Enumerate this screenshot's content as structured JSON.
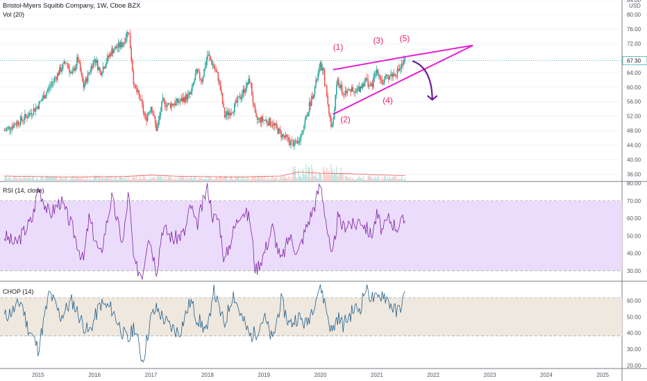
{
  "header": {
    "title": "Bristol-Myers Squibb Company, 1W, Cboe BZX",
    "volume_label": "Vol (20)",
    "rsi_label": "RSI (14, close)",
    "chop_label": "CHOP (14)",
    "currency": "USD"
  },
  "colors": {
    "up": "#26a69a",
    "down": "#ef5350",
    "pattern": "#e61fd1",
    "wave_labels": "#e91e63",
    "arrow": "#6a1b9a",
    "rsi_line": "#7b1fa2",
    "rsi_band": "#ecdcfb",
    "chop_line": "#1f5f8b",
    "chop_band": "#efe8df",
    "vol_ma": "#ef5350",
    "price_line": "#26a69a"
  },
  "chart_data": [
    {
      "type": "candlestick",
      "name": "price",
      "x": [
        "2015",
        "2016",
        "2017",
        "2018",
        "2019",
        "2020",
        "2021",
        "2022",
        "2023",
        "2024",
        "2025"
      ],
      "ylim": [
        34,
        84
      ],
      "yticks": [
        36.0,
        40.0,
        44.0,
        48.0,
        52.0,
        56.0,
        60.0,
        64.0,
        68.0,
        72.0,
        76.0,
        80.0,
        84.0
      ],
      "last_price": 67.3,
      "series": [
        {
          "points": [
            [
              2014.4,
              48
            ],
            [
              2014.6,
              50
            ],
            [
              2014.8,
              52
            ],
            [
              2015.0,
              55
            ],
            [
              2015.2,
              60
            ],
            [
              2015.4,
              65
            ],
            [
              2015.5,
              67
            ],
            [
              2015.6,
              63
            ],
            [
              2015.7,
              68
            ],
            [
              2015.8,
              60
            ],
            [
              2016.0,
              68
            ],
            [
              2016.1,
              64
            ],
            [
              2016.3,
              70
            ],
            [
              2016.5,
              72
            ],
            [
              2016.6,
              76
            ],
            [
              2016.7,
              60
            ],
            [
              2016.8,
              57
            ],
            [
              2016.9,
              51
            ],
            [
              2017.0,
              55
            ],
            [
              2017.1,
              48
            ],
            [
              2017.2,
              56
            ],
            [
              2017.3,
              55
            ],
            [
              2017.5,
              56
            ],
            [
              2017.7,
              58
            ],
            [
              2017.8,
              64
            ],
            [
              2017.9,
              62
            ],
            [
              2018.0,
              69
            ],
            [
              2018.1,
              66
            ],
            [
              2018.2,
              62
            ],
            [
              2018.3,
              52
            ],
            [
              2018.45,
              54
            ],
            [
              2018.6,
              58
            ],
            [
              2018.75,
              62
            ],
            [
              2018.85,
              51
            ],
            [
              2019.0,
              51
            ],
            [
              2019.15,
              50
            ],
            [
              2019.3,
              47
            ],
            [
              2019.45,
              45
            ],
            [
              2019.6,
              44
            ],
            [
              2019.75,
              52
            ],
            [
              2019.9,
              60
            ],
            [
              2020.0,
              66
            ],
            [
              2020.05,
              64
            ],
            [
              2020.2,
              48
            ],
            [
              2020.3,
              62
            ],
            [
              2020.4,
              58
            ],
            [
              2020.5,
              60
            ],
            [
              2020.6,
              58
            ],
            [
              2020.7,
              60
            ],
            [
              2020.8,
              62
            ],
            [
              2020.9,
              60
            ],
            [
              2021.0,
              65
            ],
            [
              2021.1,
              61
            ],
            [
              2021.2,
              63
            ],
            [
              2021.35,
              64
            ],
            [
              2021.5,
              67.3
            ]
          ]
        }
      ]
    },
    {
      "type": "bar",
      "name": "volume",
      "ma_points": [
        [
          2014.4,
          2.0
        ],
        [
          2015.5,
          1.6
        ],
        [
          2016.5,
          1.8
        ],
        [
          2017.0,
          2.3
        ],
        [
          2017.5,
          1.9
        ],
        [
          2018.5,
          1.6
        ],
        [
          2019.3,
          2.0
        ],
        [
          2019.6,
          3.4
        ],
        [
          2020.0,
          3.0
        ],
        [
          2020.5,
          2.8
        ],
        [
          2021.0,
          2.4
        ],
        [
          2021.5,
          2.1
        ]
      ]
    },
    {
      "type": "line",
      "name": "rsi",
      "ylim": [
        24,
        81
      ],
      "yticks": [
        30.0,
        40.0,
        50.0,
        60.0,
        70.0,
        80.0
      ],
      "bands": [
        30,
        70
      ],
      "points": [
        [
          2014.4,
          50
        ],
        [
          2014.6,
          45
        ],
        [
          2014.8,
          55
        ],
        [
          2014.9,
          60
        ],
        [
          2015.0,
          78
        ],
        [
          2015.2,
          62
        ],
        [
          2015.4,
          70
        ],
        [
          2015.6,
          55
        ],
        [
          2015.8,
          35
        ],
        [
          2015.9,
          60
        ],
        [
          2016.1,
          38
        ],
        [
          2016.3,
          72
        ],
        [
          2016.5,
          45
        ],
        [
          2016.6,
          75
        ],
        [
          2016.7,
          33
        ],
        [
          2016.85,
          28
        ],
        [
          2016.95,
          52
        ],
        [
          2017.1,
          30
        ],
        [
          2017.2,
          55
        ],
        [
          2017.4,
          48
        ],
        [
          2017.6,
          52
        ],
        [
          2017.7,
          68
        ],
        [
          2017.8,
          55
        ],
        [
          2018.0,
          78
        ],
        [
          2018.1,
          60
        ],
        [
          2018.2,
          60
        ],
        [
          2018.3,
          35
        ],
        [
          2018.45,
          52
        ],
        [
          2018.6,
          65
        ],
        [
          2018.75,
          60
        ],
        [
          2018.85,
          30
        ],
        [
          2019.0,
          40
        ],
        [
          2019.15,
          55
        ],
        [
          2019.3,
          35
        ],
        [
          2019.45,
          50
        ],
        [
          2019.6,
          40
        ],
        [
          2019.75,
          55
        ],
        [
          2019.9,
          68
        ],
        [
          2020.0,
          80
        ],
        [
          2020.05,
          70
        ],
        [
          2020.2,
          35
        ],
        [
          2020.3,
          60
        ],
        [
          2020.4,
          55
        ],
        [
          2020.5,
          58
        ],
        [
          2020.6,
          55
        ],
        [
          2020.7,
          60
        ],
        [
          2020.8,
          55
        ],
        [
          2020.9,
          50
        ],
        [
          2021.0,
          62
        ],
        [
          2021.1,
          52
        ],
        [
          2021.2,
          60
        ],
        [
          2021.35,
          55
        ],
        [
          2021.5,
          59
        ]
      ]
    },
    {
      "type": "line",
      "name": "chop",
      "ylim": [
        18,
        72
      ],
      "yticks": [
        20.0,
        30.0,
        40.0,
        50.0,
        60.0
      ],
      "bands": [
        38.2,
        61.8
      ],
      "points": [
        [
          2014.4,
          50
        ],
        [
          2014.6,
          55
        ],
        [
          2014.7,
          60
        ],
        [
          2014.8,
          45
        ],
        [
          2014.9,
          38
        ],
        [
          2015.0,
          30
        ],
        [
          2015.2,
          65
        ],
        [
          2015.4,
          50
        ],
        [
          2015.6,
          60
        ],
        [
          2015.8,
          45
        ],
        [
          2015.9,
          40
        ],
        [
          2016.1,
          58
        ],
        [
          2016.3,
          55
        ],
        [
          2016.5,
          40
        ],
        [
          2016.6,
          35
        ],
        [
          2016.7,
          45
        ],
        [
          2016.85,
          22
        ],
        [
          2017.0,
          50
        ],
        [
          2017.1,
          55
        ],
        [
          2017.3,
          45
        ],
        [
          2017.5,
          40
        ],
        [
          2017.7,
          60
        ],
        [
          2017.8,
          50
        ],
        [
          2018.0,
          40
        ],
        [
          2018.1,
          68
        ],
        [
          2018.2,
          55
        ],
        [
          2018.3,
          45
        ],
        [
          2018.45,
          65
        ],
        [
          2018.6,
          50
        ],
        [
          2018.75,
          38
        ],
        [
          2018.85,
          40
        ],
        [
          2019.0,
          50
        ],
        [
          2019.15,
          35
        ],
        [
          2019.3,
          60
        ],
        [
          2019.45,
          45
        ],
        [
          2019.6,
          50
        ],
        [
          2019.75,
          45
        ],
        [
          2019.9,
          60
        ],
        [
          2020.0,
          70
        ],
        [
          2020.1,
          55
        ],
        [
          2020.2,
          40
        ],
        [
          2020.3,
          50
        ],
        [
          2020.4,
          45
        ],
        [
          2020.5,
          50
        ],
        [
          2020.6,
          55
        ],
        [
          2020.7,
          55
        ],
        [
          2020.8,
          68
        ],
        [
          2020.9,
          62
        ],
        [
          2021.0,
          60
        ],
        [
          2021.1,
          65
        ],
        [
          2021.2,
          60
        ],
        [
          2021.35,
          52
        ],
        [
          2021.5,
          63
        ]
      ]
    }
  ],
  "annotations": {
    "wave_labels": [
      "(1)",
      "(2)",
      "(3)",
      "(4)",
      "(5)"
    ]
  },
  "price_tag": "67.30"
}
